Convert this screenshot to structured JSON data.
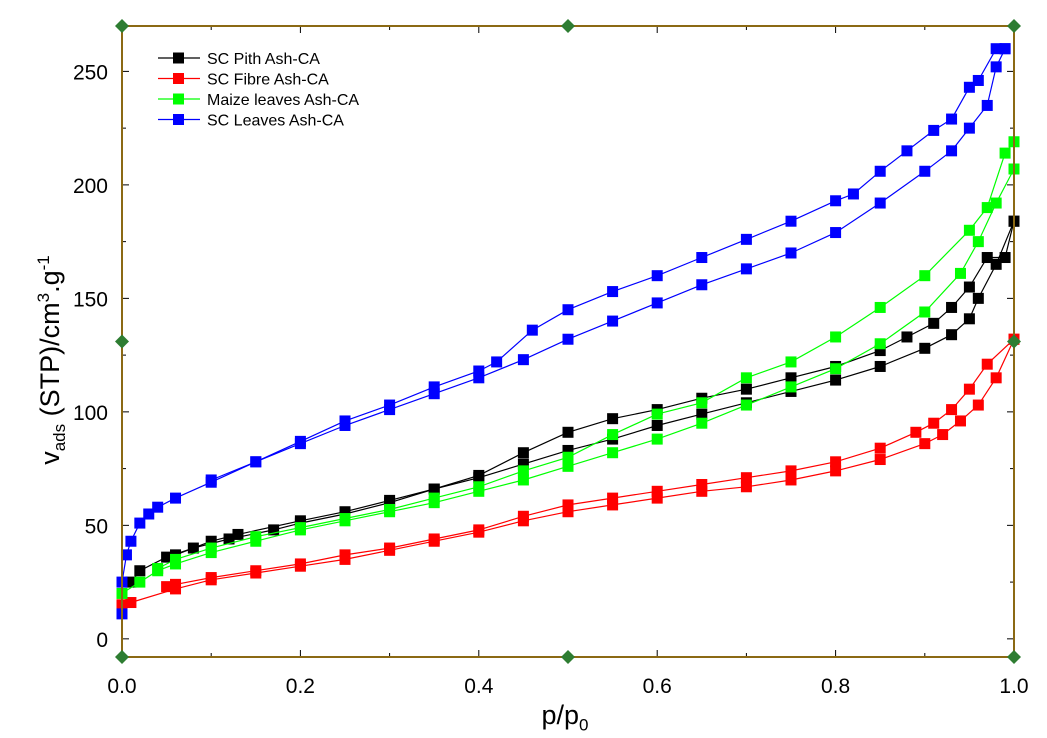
{
  "chart_data": {
    "type": "line",
    "title": "",
    "xlabel": "p/p0",
    "ylabel": "vads (STP)/cm3.g-1",
    "xlabel_parts": {
      "main": "p/p",
      "sub": "0"
    },
    "ylabel_parts": {
      "v": "v",
      "ads": "ads",
      "rest": " (STP)/cm",
      "sup3": "3",
      "dot_g": ".g",
      "supm1": "-1"
    },
    "xlim": [
      0,
      1
    ],
    "ylim": [
      -8,
      270
    ],
    "xticks": [
      "0.0",
      "0.2",
      "0.4",
      "0.6",
      "0.8",
      "1.0"
    ],
    "xtick_values": [
      0,
      0.2,
      0.4,
      0.6,
      0.8,
      1.0
    ],
    "yticks": [
      "0",
      "50",
      "100",
      "150",
      "200",
      "250"
    ],
    "ytick_values": [
      0,
      50,
      100,
      150,
      200,
      250
    ],
    "legend_position": "top-left",
    "frame_color": "#8B6914",
    "marker_color": "#2E7D32",
    "series": [
      {
        "name": "SC Pith Ash-CA",
        "color": "#000000",
        "adsorption": [
          [
            0.01,
            25
          ],
          [
            0.02,
            30
          ],
          [
            0.05,
            36
          ],
          [
            0.08,
            40
          ],
          [
            0.12,
            44
          ],
          [
            0.17,
            48
          ],
          [
            0.2,
            51
          ],
          [
            0.25,
            55
          ],
          [
            0.3,
            60
          ],
          [
            0.35,
            66
          ],
          [
            0.4,
            71
          ],
          [
            0.45,
            77
          ],
          [
            0.5,
            83
          ],
          [
            0.55,
            88
          ],
          [
            0.6,
            94
          ],
          [
            0.65,
            99
          ],
          [
            0.7,
            104
          ],
          [
            0.75,
            109
          ],
          [
            0.8,
            114
          ],
          [
            0.85,
            120
          ],
          [
            0.9,
            128
          ],
          [
            0.93,
            134
          ],
          [
            0.95,
            141
          ],
          [
            0.96,
            150
          ],
          [
            0.98,
            165
          ],
          [
            1.0,
            184
          ]
        ],
        "desorption": [
          [
            1.0,
            184
          ],
          [
            0.99,
            168
          ],
          [
            0.97,
            168
          ],
          [
            0.95,
            155
          ],
          [
            0.93,
            146
          ],
          [
            0.91,
            139
          ],
          [
            0.88,
            133
          ],
          [
            0.85,
            127
          ],
          [
            0.8,
            120
          ],
          [
            0.75,
            115
          ],
          [
            0.7,
            110
          ],
          [
            0.65,
            106
          ],
          [
            0.6,
            101
          ],
          [
            0.55,
            97
          ],
          [
            0.5,
            91
          ],
          [
            0.45,
            82
          ],
          [
            0.4,
            72
          ],
          [
            0.35,
            66
          ],
          [
            0.3,
            61
          ],
          [
            0.25,
            56
          ],
          [
            0.2,
            52
          ],
          [
            0.13,
            46
          ],
          [
            0.1,
            43
          ],
          [
            0.06,
            37
          ]
        ]
      },
      {
        "name": "SC Fibre Ash-CA",
        "color": "#FF0000",
        "adsorption": [
          [
            0.0,
            15
          ],
          [
            0.01,
            16
          ],
          [
            0.06,
            22
          ],
          [
            0.1,
            26
          ],
          [
            0.15,
            29
          ],
          [
            0.2,
            32
          ],
          [
            0.25,
            35
          ],
          [
            0.3,
            39
          ],
          [
            0.35,
            43
          ],
          [
            0.4,
            47
          ],
          [
            0.45,
            52
          ],
          [
            0.5,
            56
          ],
          [
            0.55,
            59
          ],
          [
            0.6,
            62
          ],
          [
            0.65,
            65
          ],
          [
            0.7,
            67
          ],
          [
            0.75,
            70
          ],
          [
            0.8,
            74
          ],
          [
            0.85,
            79
          ],
          [
            0.9,
            86
          ],
          [
            0.92,
            90
          ],
          [
            0.94,
            96
          ],
          [
            0.96,
            103
          ],
          [
            0.98,
            115
          ],
          [
            1.0,
            132
          ]
        ],
        "desorption": [
          [
            1.0,
            132
          ],
          [
            0.97,
            121
          ],
          [
            0.95,
            110
          ],
          [
            0.93,
            101
          ],
          [
            0.91,
            95
          ],
          [
            0.89,
            91
          ],
          [
            0.85,
            84
          ],
          [
            0.8,
            78
          ],
          [
            0.75,
            74
          ],
          [
            0.7,
            71
          ],
          [
            0.65,
            68
          ],
          [
            0.6,
            65
          ],
          [
            0.55,
            62
          ],
          [
            0.5,
            59
          ],
          [
            0.45,
            54
          ],
          [
            0.4,
            48
          ],
          [
            0.35,
            44
          ],
          [
            0.3,
            40
          ],
          [
            0.25,
            37
          ],
          [
            0.2,
            33
          ],
          [
            0.15,
            30
          ],
          [
            0.1,
            27
          ],
          [
            0.06,
            24
          ],
          [
            0.05,
            23
          ]
        ]
      },
      {
        "name": "Maize leaves Ash-CA",
        "color": "#00FF00",
        "adsorption": [
          [
            0.0,
            20
          ],
          [
            0.02,
            25
          ],
          [
            0.04,
            30
          ],
          [
            0.06,
            33
          ],
          [
            0.1,
            38
          ],
          [
            0.15,
            43
          ],
          [
            0.2,
            48
          ],
          [
            0.25,
            52
          ],
          [
            0.3,
            56
          ],
          [
            0.35,
            60
          ],
          [
            0.4,
            65
          ],
          [
            0.45,
            70
          ],
          [
            0.5,
            76
          ],
          [
            0.55,
            82
          ],
          [
            0.6,
            88
          ],
          [
            0.65,
            95
          ],
          [
            0.7,
            103
          ],
          [
            0.75,
            111
          ],
          [
            0.8,
            119
          ],
          [
            0.85,
            130
          ],
          [
            0.9,
            144
          ],
          [
            0.94,
            161
          ],
          [
            0.96,
            175
          ],
          [
            0.98,
            192
          ],
          [
            1.0,
            207
          ]
        ],
        "desorption": [
          [
            1.0,
            219
          ],
          [
            0.99,
            214
          ],
          [
            0.97,
            190
          ],
          [
            0.95,
            180
          ],
          [
            0.9,
            160
          ],
          [
            0.85,
            146
          ],
          [
            0.8,
            133
          ],
          [
            0.75,
            122
          ],
          [
            0.7,
            115
          ],
          [
            0.65,
            104
          ],
          [
            0.6,
            99
          ],
          [
            0.55,
            90
          ],
          [
            0.5,
            80
          ],
          [
            0.45,
            74
          ],
          [
            0.4,
            67
          ],
          [
            0.35,
            62
          ],
          [
            0.3,
            57
          ],
          [
            0.25,
            53
          ],
          [
            0.2,
            49
          ],
          [
            0.15,
            45
          ],
          [
            0.1,
            40
          ],
          [
            0.06,
            35
          ],
          [
            0.04,
            31
          ]
        ]
      },
      {
        "name": "SC Leaves Ash-CA",
        "color": "#0000FF",
        "adsorption": [
          [
            0.0,
            11
          ],
          [
            0.0,
            25
          ],
          [
            0.005,
            37
          ],
          [
            0.01,
            43
          ],
          [
            0.02,
            51
          ],
          [
            0.03,
            55
          ],
          [
            0.04,
            58
          ],
          [
            0.06,
            62
          ],
          [
            0.1,
            69
          ],
          [
            0.15,
            78
          ],
          [
            0.2,
            86
          ],
          [
            0.25,
            94
          ],
          [
            0.3,
            101
          ],
          [
            0.35,
            108
          ],
          [
            0.4,
            115
          ],
          [
            0.45,
            123
          ],
          [
            0.5,
            132
          ],
          [
            0.55,
            140
          ],
          [
            0.6,
            148
          ],
          [
            0.65,
            156
          ],
          [
            0.7,
            163
          ],
          [
            0.75,
            170
          ],
          [
            0.8,
            179
          ],
          [
            0.85,
            192
          ],
          [
            0.9,
            206
          ],
          [
            0.93,
            215
          ],
          [
            0.95,
            225
          ],
          [
            0.97,
            235
          ],
          [
            0.98,
            252
          ],
          [
            0.99,
            260
          ]
        ],
        "desorption": [
          [
            0.99,
            260
          ],
          [
            0.98,
            260
          ],
          [
            0.96,
            246
          ],
          [
            0.95,
            243
          ],
          [
            0.93,
            229
          ],
          [
            0.91,
            224
          ],
          [
            0.88,
            215
          ],
          [
            0.85,
            206
          ],
          [
            0.82,
            196
          ],
          [
            0.8,
            193
          ],
          [
            0.75,
            184
          ],
          [
            0.7,
            176
          ],
          [
            0.65,
            168
          ],
          [
            0.6,
            160
          ],
          [
            0.55,
            153
          ],
          [
            0.5,
            145
          ],
          [
            0.46,
            136
          ],
          [
            0.42,
            122
          ],
          [
            0.4,
            118
          ],
          [
            0.35,
            111
          ],
          [
            0.3,
            103
          ],
          [
            0.25,
            96
          ],
          [
            0.2,
            87
          ],
          [
            0.15,
            78
          ],
          [
            0.1,
            70
          ]
        ]
      }
    ]
  }
}
